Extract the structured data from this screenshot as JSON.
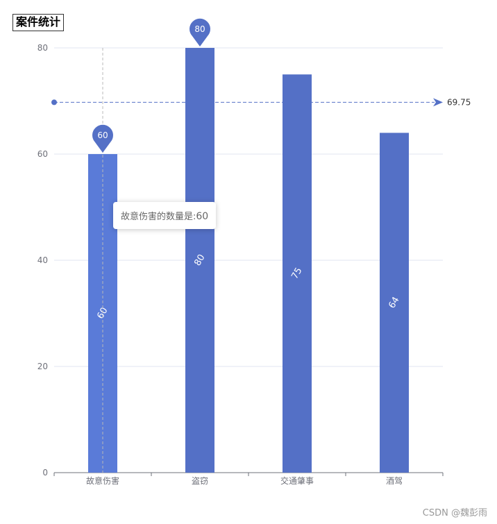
{
  "chart_data": {
    "type": "bar",
    "title": "案件统计",
    "categories": [
      "故意伤害",
      "盗窃",
      "交通肇事",
      "酒驾"
    ],
    "series": [
      {
        "values": [
          60,
          80,
          75,
          64
        ],
        "color": "#5470c6",
        "highlight_color": "#5a7bd8"
      }
    ],
    "ylim": [
      0,
      80
    ],
    "yticks": [
      0,
      20,
      40,
      60,
      80
    ],
    "grid": true,
    "data_labels": [
      "60",
      "80",
      "75",
      "64"
    ],
    "mark_points": [
      {
        "category": "故意伤害",
        "value": 60,
        "label": "60"
      },
      {
        "category": "盗窃",
        "value": 80,
        "label": "80"
      }
    ],
    "mark_line": {
      "type": "average",
      "value": 69.75,
      "label": "69.75"
    }
  },
  "tooltip": {
    "prefix": "故意伤害的数量是:",
    "value": "60"
  },
  "watermark": "CSDN @魏彭雨"
}
